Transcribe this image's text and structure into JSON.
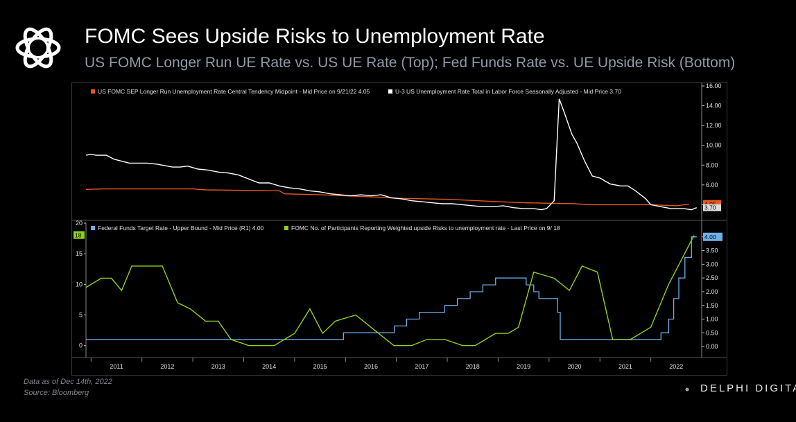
{
  "header": {
    "title": "FOMC Sees Upside Risks to Unemployment  Rate",
    "subtitle": "US FOMC Longer Run UE Rate vs. US UE Rate (Top); Fed Funds Rate vs. UE Upside Risk (Bottom)"
  },
  "footer": {
    "data_note": "Data as of Dec 14th, 2022",
    "source_note": "Source: Bloomberg",
    "brand": "DELPHI DIGITAL"
  },
  "colors": {
    "background": "#000000",
    "orange": "#e8581c",
    "white": "#ffffff",
    "blue": "#6fb0ec",
    "green": "#8ed21b",
    "subtitle": "#8e9aa8"
  },
  "chart_data": [
    {
      "type": "line",
      "panel": "top",
      "x_unit": "year",
      "y_axis_side": "right",
      "ylim": [
        2.7,
        16.0
      ],
      "y_ticks": [
        "4.00",
        "6.00",
        "8.00",
        "10.00",
        "12.00",
        "14.00",
        "16.00"
      ],
      "series": [
        {
          "name": "US FOMC SEP Longer Run Unemployment Rate Central Tendency Midpoint - Mid Price on 9/21/22 4.05",
          "color": "#e8581c",
          "last_label": "4.05",
          "x": [
            2010.9,
            2011.3,
            2012.0,
            2012.5,
            2013.0,
            2013.25,
            2014.0,
            2014.7,
            2014.8,
            2015.5,
            2016.0,
            2016.5,
            2017.0,
            2018.0,
            2019.0,
            2019.5,
            2020.0,
            2020.5,
            2020.8,
            2021.5,
            2022.0,
            2022.5,
            2022.75
          ],
          "y": [
            5.55,
            5.6,
            5.6,
            5.6,
            5.6,
            5.5,
            5.45,
            5.4,
            5.1,
            5.0,
            4.9,
            4.8,
            4.65,
            4.55,
            4.3,
            4.2,
            4.15,
            4.1,
            4.0,
            4.0,
            4.0,
            3.9,
            4.05
          ]
        },
        {
          "name": "U-3 US Unemployment Rate Total in Labor Force Seasonally Adjusted - Mid Price 3.70",
          "color": "#ffffff",
          "last_label": "3.70",
          "x": [
            2010.9,
            2011.0,
            2011.1,
            2011.3,
            2011.45,
            2011.6,
            2011.75,
            2011.9,
            2012.1,
            2012.3,
            2012.6,
            2012.75,
            2012.9,
            2013.1,
            2013.3,
            2013.5,
            2013.7,
            2013.9,
            2014.1,
            2014.3,
            2014.5,
            2014.7,
            2014.9,
            2015.1,
            2015.3,
            2015.5,
            2015.7,
            2015.9,
            2016.1,
            2016.3,
            2016.5,
            2016.7,
            2016.9,
            2017.1,
            2017.3,
            2017.5,
            2017.7,
            2017.9,
            2018.1,
            2018.3,
            2018.5,
            2018.7,
            2018.9,
            2019.1,
            2019.3,
            2019.5,
            2019.7,
            2019.85,
            2019.95,
            2020.1,
            2020.2,
            2020.3,
            2020.45,
            2020.55,
            2020.7,
            2020.85,
            2021.0,
            2021.2,
            2021.4,
            2021.55,
            2021.7,
            2021.9,
            2022.0,
            2022.2,
            2022.4,
            2022.5,
            2022.65,
            2022.8,
            2022.9
          ],
          "y": [
            9.0,
            9.1,
            9.0,
            9.0,
            8.6,
            8.4,
            8.2,
            8.2,
            8.2,
            8.1,
            7.8,
            7.8,
            7.9,
            7.6,
            7.5,
            7.3,
            7.2,
            7.0,
            6.6,
            6.2,
            6.2,
            5.9,
            5.7,
            5.6,
            5.4,
            5.3,
            5.1,
            5.0,
            4.9,
            5.0,
            4.9,
            5.0,
            4.7,
            4.6,
            4.4,
            4.3,
            4.2,
            4.1,
            4.1,
            4.0,
            3.9,
            3.8,
            3.8,
            3.9,
            3.7,
            3.6,
            3.6,
            3.5,
            3.6,
            4.4,
            14.7,
            13.3,
            11.1,
            10.2,
            8.4,
            6.9,
            6.7,
            6.1,
            5.9,
            5.9,
            5.4,
            4.6,
            4.0,
            3.8,
            3.6,
            3.6,
            3.6,
            3.5,
            3.7
          ]
        }
      ]
    },
    {
      "type": "line",
      "panel": "bottom",
      "x_unit": "year",
      "x_ticks": [
        "2011",
        "2012",
        "2013",
        "2014",
        "2015",
        "2016",
        "2017",
        "2018",
        "2019",
        "2020",
        "2021",
        "2022"
      ],
      "left_axis": {
        "ylim": [
          -1.5,
          20
        ],
        "ticks": [
          "0",
          "5",
          "10",
          "15",
          "20"
        ],
        "last_value_label": "18"
      },
      "right_axis": {
        "ylim": [
          -0.3,
          4.5
        ],
        "ticks": [
          "0.00",
          "0.50",
          "1.00",
          "1.50",
          "2.00",
          "2.50",
          "3.00",
          "3.50",
          "4.00"
        ],
        "last_value_label": "4.00"
      },
      "series": [
        {
          "name": "Federal Funds Target Rate - Upper Bound - Mid Price (R1) 4.00",
          "color": "#6fb0ec",
          "axis": "right",
          "step": true,
          "x": [
            2010.9,
            2015.96,
            2016.96,
            2017.2,
            2017.45,
            2017.95,
            2018.2,
            2018.45,
            2018.7,
            2018.95,
            2019.55,
            2019.7,
            2019.8,
            2020.17,
            2020.22,
            2022.2,
            2022.35,
            2022.45,
            2022.55,
            2022.67,
            2022.8,
            2022.9
          ],
          "y": [
            0.25,
            0.5,
            0.75,
            1.0,
            1.25,
            1.5,
            1.75,
            2.0,
            2.25,
            2.5,
            2.25,
            2.0,
            1.75,
            1.25,
            0.25,
            0.5,
            1.0,
            1.75,
            2.5,
            3.25,
            4.0,
            4.0
          ]
        },
        {
          "name": "FOMC No. of Participants Reporting Weighted upside Risks to unemployment rate - Last Price on 9/ 18",
          "color": "#8ed21b",
          "axis": "left",
          "x": [
            2010.9,
            2011.2,
            2011.4,
            2011.6,
            2011.8,
            2012.4,
            2012.7,
            2012.95,
            2013.25,
            2013.5,
            2013.75,
            2014.1,
            2014.6,
            2015.0,
            2015.3,
            2015.55,
            2015.8,
            2016.2,
            2016.5,
            2016.95,
            2017.3,
            2017.6,
            2017.95,
            2018.3,
            2018.55,
            2018.75,
            2018.95,
            2019.2,
            2019.4,
            2019.7,
            2020.1,
            2020.4,
            2020.65,
            2020.95,
            2021.25,
            2021.6,
            2022.0,
            2022.35,
            2022.85
          ],
          "y": [
            9.5,
            11,
            11,
            9,
            13,
            13,
            7,
            6,
            4,
            4,
            1,
            0,
            0,
            2,
            6,
            2,
            4,
            5,
            3,
            0,
            0,
            1,
            1,
            0,
            0,
            1,
            2,
            2,
            3,
            12,
            11,
            9,
            13,
            12,
            1,
            1,
            3,
            10,
            18
          ]
        }
      ]
    }
  ]
}
